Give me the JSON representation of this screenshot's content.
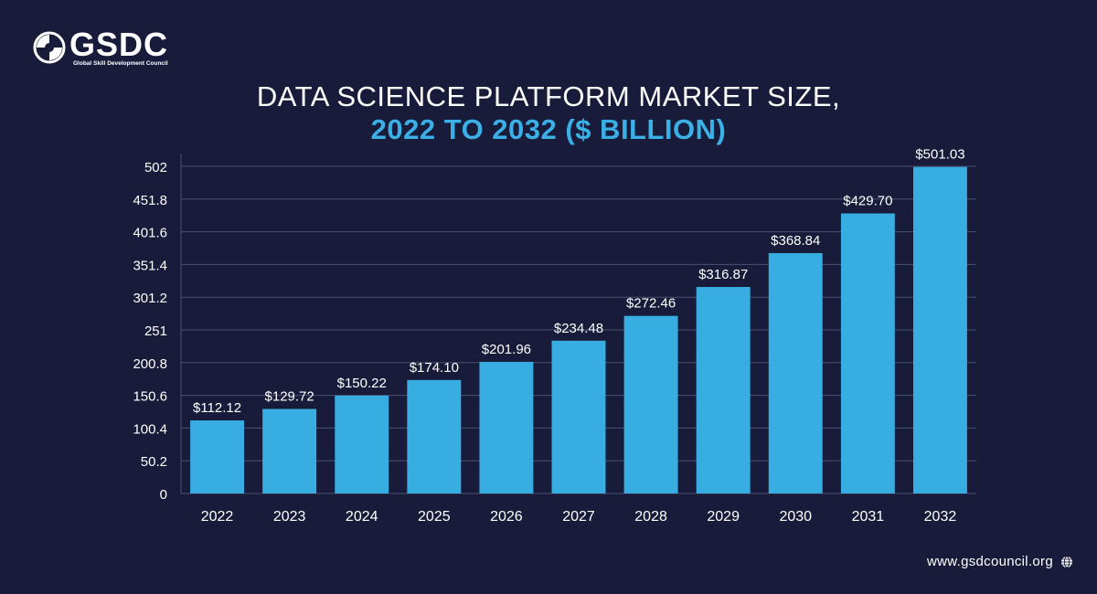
{
  "logo": {
    "name": "GSDC",
    "subtitle": "Global Skill Development Council"
  },
  "footer": {
    "url": "www.gsdcouncil.org"
  },
  "chart_data": {
    "type": "bar",
    "title_line1": "DATA SCIENCE PLATFORM MARKET SIZE,",
    "title_line2": "2022 TO 2032 ($ BILLION)",
    "categories": [
      "2022",
      "2023",
      "2024",
      "2025",
      "2026",
      "2027",
      "2028",
      "2029",
      "2030",
      "2031",
      "2032"
    ],
    "values": [
      112.12,
      129.72,
      150.22,
      174.1,
      201.96,
      234.48,
      272.46,
      316.87,
      368.84,
      429.7,
      501.03
    ],
    "value_labels": [
      "$112.12",
      "$129.72",
      "$150.22",
      "$174.10",
      "$201.96",
      "$234.48",
      "$272.46",
      "$316.87",
      "$368.84",
      "$429.70",
      "$501.03"
    ],
    "yticks": [
      "0",
      "50.2",
      "100.4",
      "150.6",
      "200.8",
      "251",
      "301.2",
      "351.4",
      "401.6",
      "451.8",
      "502"
    ],
    "ylim": [
      0,
      502
    ],
    "grid": true,
    "bar_color": "#38ade2"
  }
}
